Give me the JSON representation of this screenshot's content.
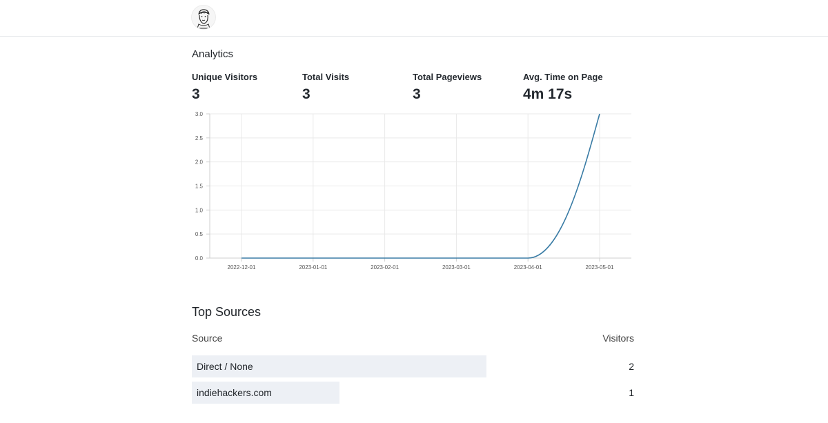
{
  "header": {
    "avatar_icon": "sketch-portrait-avatar"
  },
  "analytics": {
    "title": "Analytics"
  },
  "stats": [
    {
      "label": "Unique Visitors",
      "value": "3"
    },
    {
      "label": "Total Visits",
      "value": "3"
    },
    {
      "label": "Total Pageviews",
      "value": "3"
    },
    {
      "label": "Avg. Time on Page",
      "value": "4m 17s"
    }
  ],
  "chart_data": {
    "type": "line",
    "x_ticks": [
      "2022-12-01",
      "2023-01-01",
      "2023-02-01",
      "2023-03-01",
      "2023-04-01",
      "2023-05-01"
    ],
    "y_ticks": [
      "0.0",
      "0.5",
      "1.0",
      "1.5",
      "2.0",
      "2.5",
      "3.0"
    ],
    "ylim": [
      0,
      3
    ],
    "x": [
      "2022-12-01",
      "2023-01-01",
      "2023-02-01",
      "2023-03-01",
      "2023-04-01",
      "2023-05-01"
    ],
    "values": [
      0,
      0,
      0,
      0,
      0,
      3
    ],
    "line_color": "#3a7ca5",
    "grid": true
  },
  "sources": {
    "title": "Top Sources",
    "col_source": "Source",
    "col_visitors": "Visitors",
    "rows": [
      {
        "name": "Direct / None",
        "count": "2",
        "visitors": 2
      },
      {
        "name": "indiehackers.com",
        "count": "1",
        "visitors": 1
      }
    ],
    "bar_color": "#edf0f5"
  }
}
